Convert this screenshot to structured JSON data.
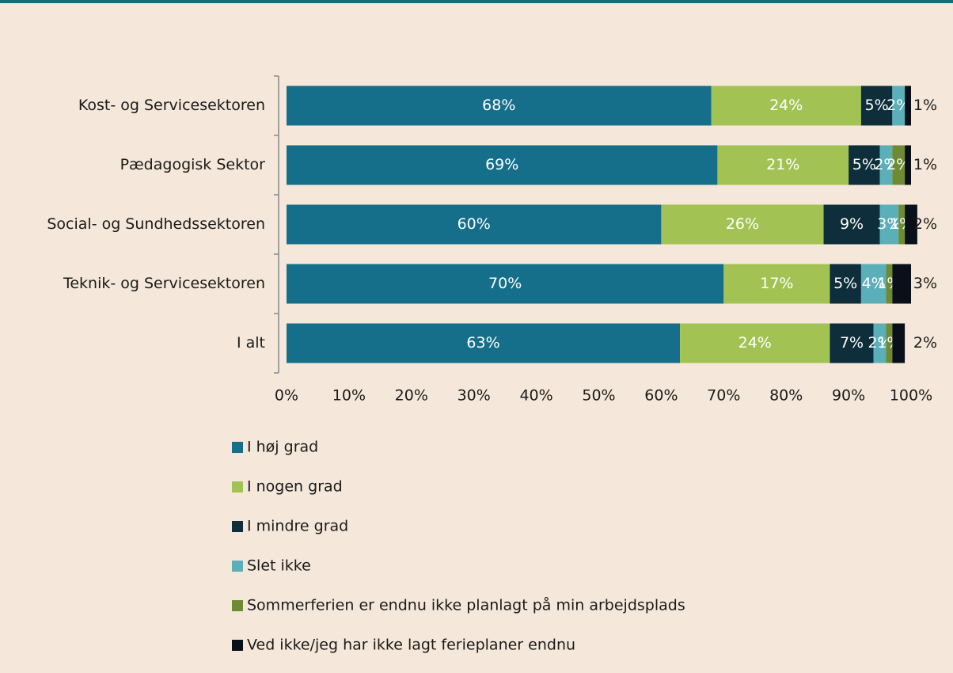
{
  "chart_data": {
    "type": "stacked-bar-horizontal",
    "categories": [
      "Kost- og Servicesektoren",
      "Pædagogisk Sektor",
      "Social- og Sundhedssektoren",
      "Teknik- og Servicesektoren",
      "I alt"
    ],
    "series": [
      {
        "name": "I høj grad",
        "color": "#156f8a",
        "values": [
          68,
          69,
          60,
          70,
          63
        ],
        "value_labels": [
          "68%",
          "69%",
          "60%",
          "70%",
          "63%"
        ]
      },
      {
        "name": "I nogen grad",
        "color": "#a2c353",
        "values": [
          24,
          21,
          26,
          17,
          24
        ],
        "value_labels": [
          "24%",
          "21%",
          "26%",
          "17%",
          "24%"
        ]
      },
      {
        "name": "I mindre grad",
        "color": "#0d2e3a",
        "values": [
          5,
          5,
          9,
          5,
          7
        ],
        "value_labels": [
          "5%",
          "5%",
          "9%",
          "5%",
          "7%"
        ]
      },
      {
        "name": "Slet ikke",
        "color": "#5aafb9",
        "values": [
          2,
          2,
          3,
          4,
          2
        ],
        "value_labels": [
          "2%",
          "2%",
          "3%",
          "4%",
          "2%"
        ]
      },
      {
        "name": "Sommerferien er endnu ikke planlagt på min arbejdsplads",
        "color": "#6e8a33",
        "values": [
          0,
          2,
          1,
          1,
          1
        ],
        "value_labels": [
          null,
          "2%",
          "1%",
          "1%",
          "1%"
        ]
      },
      {
        "name": "Ved ikke/jeg har ikke lagt ferieplaner endnu",
        "color": "#0a0f1a",
        "values": [
          1,
          1,
          2,
          3,
          2
        ],
        "value_labels": [
          "1%",
          "1%",
          "2%",
          "3%",
          "2%"
        ]
      }
    ],
    "xlim": [
      0,
      100
    ],
    "xticks": [
      {
        "value": 0,
        "label": "0%"
      },
      {
        "value": 10,
        "label": "10%"
      },
      {
        "value": 20,
        "label": "20%"
      },
      {
        "value": 30,
        "label": "30%"
      },
      {
        "value": 40,
        "label": "40%"
      },
      {
        "value": 50,
        "label": "50%"
      },
      {
        "value": 60,
        "label": "60%"
      },
      {
        "value": 70,
        "label": "70%"
      },
      {
        "value": 80,
        "label": "80%"
      },
      {
        "value": 90,
        "label": "90%"
      },
      {
        "value": 100,
        "label": "100%"
      }
    ],
    "legend": "bottom"
  }
}
